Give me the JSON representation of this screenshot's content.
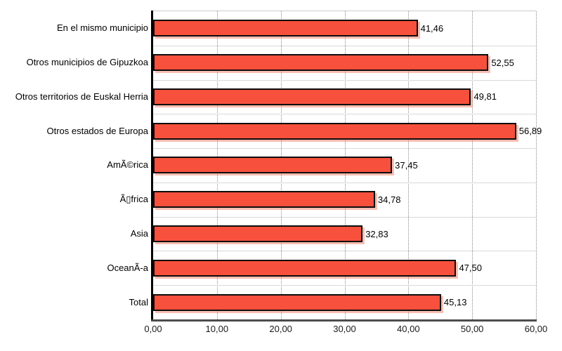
{
  "chart_data": {
    "type": "bar",
    "orientation": "horizontal",
    "categories": [
      "En el mismo municipio",
      "Otros municipios de Gipuzkoa",
      "Otros territorios de Euskal Herria",
      "Otros estados de Europa",
      "AmÃ©rica",
      "Ã▯frica",
      "Asia",
      "OceanÃ-a",
      "Total"
    ],
    "values": [
      41.46,
      52.55,
      49.81,
      56.89,
      37.45,
      34.78,
      32.83,
      47.5,
      45.13
    ],
    "value_labels": [
      "41,46",
      "52,55",
      "49,81",
      "56,89",
      "37,45",
      "34,78",
      "32,83",
      "47,50",
      "45,13"
    ],
    "xlim": [
      0,
      60
    ],
    "x_tick_values": [
      0,
      10,
      20,
      30,
      40,
      50,
      60
    ],
    "x_tick_labels": [
      "0,00",
      "10,00",
      "20,00",
      "30,00",
      "40,00",
      "50,00",
      "60,00"
    ],
    "grid": "vertical-dotted",
    "legend": "none"
  },
  "colors": {
    "bar_fill": "#f7503c",
    "bar_border": "#0d0d0d",
    "bar_shadow": "rgba(240, 110, 85, 0.45)",
    "gridline": "#8a8a8a",
    "row_separator": "#d9d9d9",
    "domain_axis": "#000000",
    "range_axis": "#4d4d4d",
    "background": "#ffffff"
  }
}
